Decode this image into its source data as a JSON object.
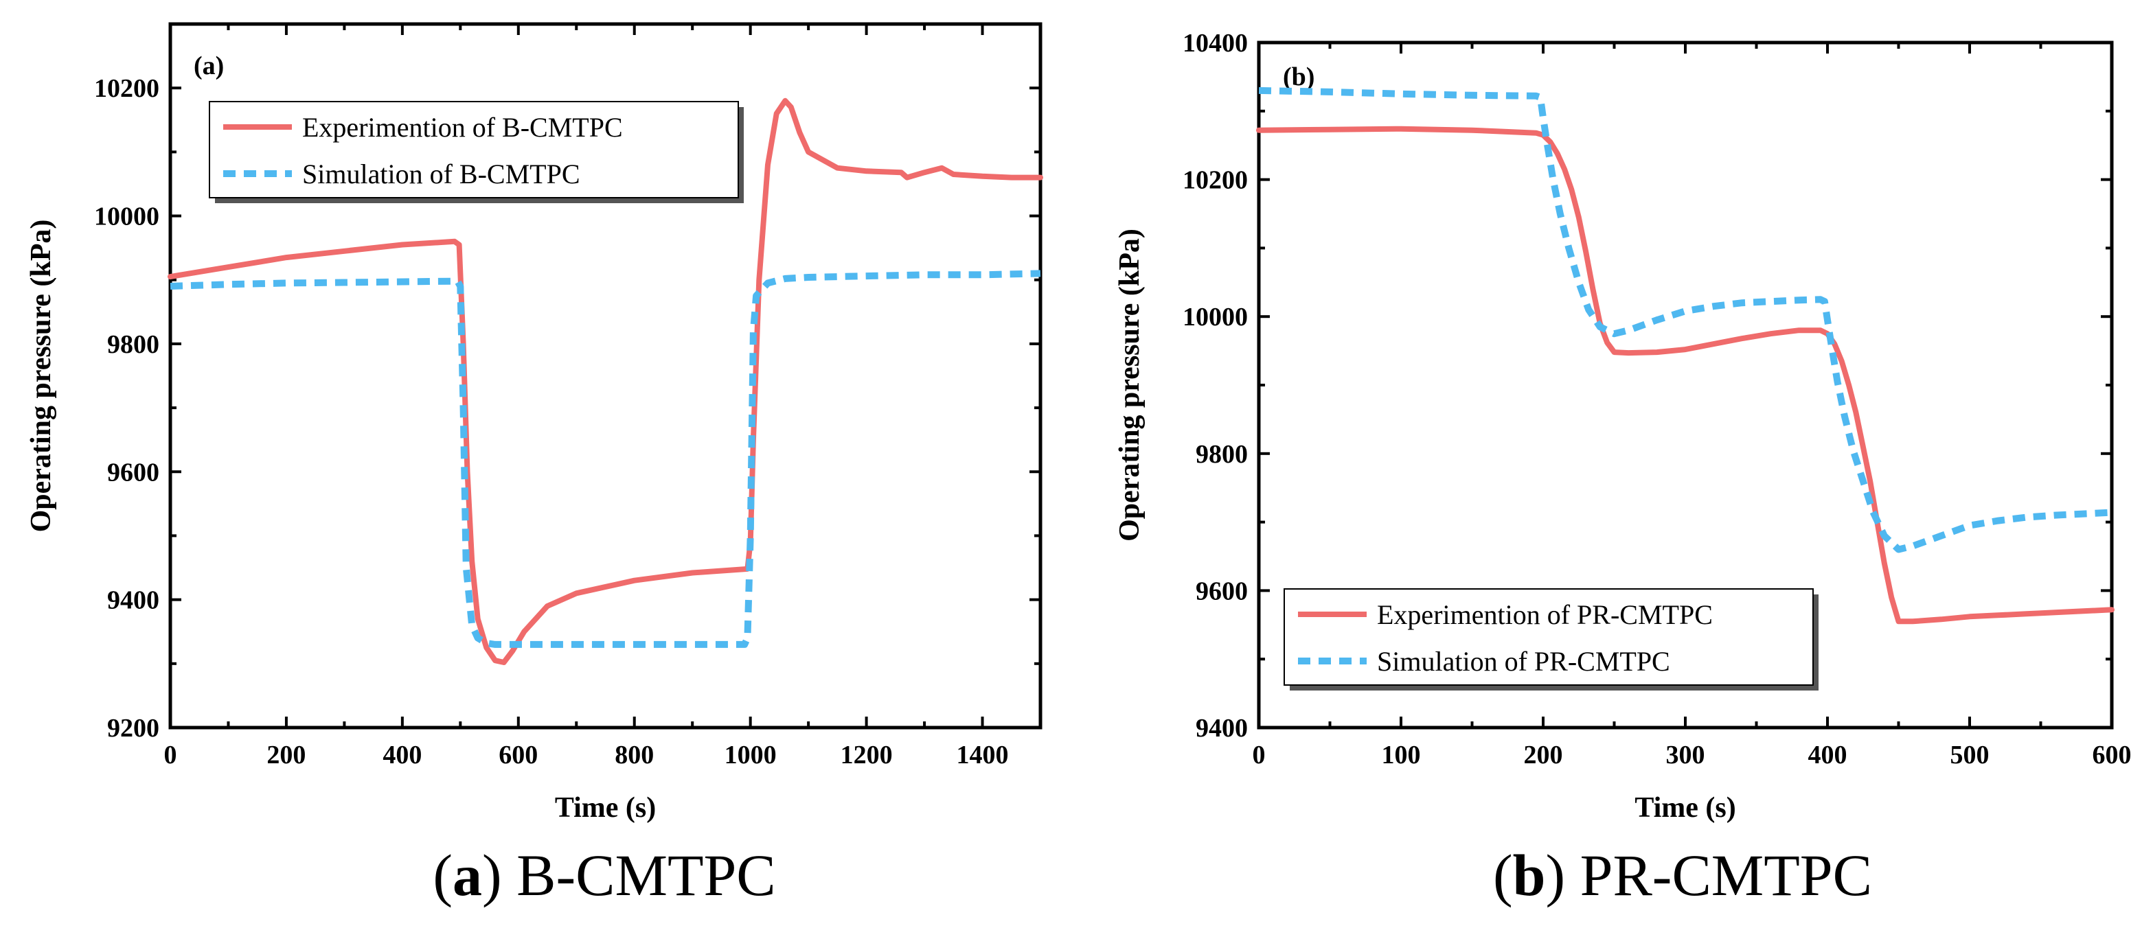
{
  "figures": [
    {
      "id": "a",
      "panel_tag": "(a)",
      "caption": {
        "tag": "a",
        "text": "B-CMTPC"
      },
      "legend": [
        {
          "label": "Experimention of B-CMTPC",
          "style": "solid"
        },
        {
          "label": "Simulation of B-CMTPC",
          "style": "dashed"
        }
      ]
    },
    {
      "id": "b",
      "panel_tag": "(b)",
      "caption": {
        "tag": "b",
        "text": "PR-CMTPC"
      },
      "legend": [
        {
          "label": "Experimention of PR-CMTPC",
          "style": "solid"
        },
        {
          "label": "Simulation of PR-CMTPC",
          "style": "dashed"
        }
      ]
    }
  ],
  "colors": {
    "experiment": "#ef6b6b",
    "simulation": "#4fb8f0",
    "axis": "#000000"
  },
  "chart_data": [
    {
      "type": "line",
      "id": "a",
      "title": "",
      "xlabel": "Time (s)",
      "ylabel": "Operating pressure (kPa)",
      "xlim": [
        0,
        1500
      ],
      "ylim": [
        9200,
        10300
      ],
      "xticks": [
        0,
        200,
        400,
        600,
        800,
        1000,
        1200,
        1400
      ],
      "yticks": [
        9200,
        9400,
        9600,
        9800,
        10000,
        10200
      ],
      "legend_position": "top-left",
      "series": [
        {
          "name": "Experimention of B-CMTPC",
          "x": [
            0,
            100,
            200,
            300,
            400,
            490,
            498,
            505,
            512,
            520,
            530,
            545,
            560,
            575,
            590,
            610,
            650,
            700,
            800,
            900,
            995,
            1000,
            1005,
            1015,
            1030,
            1045,
            1060,
            1070,
            1085,
            1100,
            1150,
            1200,
            1260,
            1270,
            1300,
            1330,
            1350,
            1400,
            1450,
            1500
          ],
          "y": [
            9905,
            9920,
            9935,
            9945,
            9955,
            9960,
            9955,
            9800,
            9600,
            9460,
            9370,
            9325,
            9305,
            9302,
            9320,
            9350,
            9390,
            9410,
            9430,
            9442,
            9448,
            9490,
            9650,
            9900,
            10080,
            10160,
            10180,
            10170,
            10130,
            10100,
            10075,
            10070,
            10068,
            10060,
            10068,
            10075,
            10065,
            10062,
            10060,
            10060
          ]
        },
        {
          "name": "Simulation of B-CMTPC",
          "x": [
            0,
            100,
            200,
            300,
            400,
            495,
            500,
            505,
            510,
            520,
            530,
            545,
            560,
            600,
            700,
            800,
            900,
            990,
            995,
            1000,
            1005,
            1010,
            1030,
            1060,
            1100,
            1200,
            1300,
            1400,
            1500
          ],
          "y": [
            9890,
            9893,
            9895,
            9896,
            9897,
            9898,
            9890,
            9700,
            9450,
            9360,
            9340,
            9332,
            9330,
            9330,
            9330,
            9330,
            9330,
            9330,
            9340,
            9500,
            9820,
            9875,
            9895,
            9902,
            9904,
            9906,
            9908,
            9908,
            9910
          ]
        }
      ]
    },
    {
      "type": "line",
      "id": "b",
      "title": "",
      "xlabel": "Time (s)",
      "ylabel": "Operating pressure (kPa)",
      "xlim": [
        0,
        600
      ],
      "ylim": [
        9400,
        10400
      ],
      "xticks": [
        0,
        100,
        200,
        300,
        400,
        500,
        600
      ],
      "yticks": [
        9400,
        9600,
        9800,
        10000,
        10200,
        10400
      ],
      "legend_position": "bottom-left",
      "series": [
        {
          "name": "Experimention of PR-CMTPC",
          "x": [
            0,
            50,
            100,
            150,
            195,
            200,
            205,
            210,
            215,
            220,
            225,
            230,
            235,
            240,
            245,
            250,
            260,
            280,
            300,
            320,
            340,
            360,
            380,
            395,
            400,
            405,
            410,
            415,
            420,
            425,
            430,
            435,
            440,
            445,
            450,
            460,
            480,
            500,
            520,
            540,
            560,
            580,
            600
          ],
          "y": [
            10272,
            10273,
            10274,
            10272,
            10268,
            10265,
            10255,
            10238,
            10215,
            10185,
            10145,
            10095,
            10040,
            9990,
            9962,
            9948,
            9947,
            9948,
            9952,
            9960,
            9968,
            9975,
            9980,
            9980,
            9975,
            9960,
            9935,
            9900,
            9860,
            9810,
            9760,
            9700,
            9640,
            9590,
            9555,
            9555,
            9558,
            9562,
            9564,
            9566,
            9568,
            9570,
            9572
          ]
        },
        {
          "name": "Simulation of PR-CMTPC",
          "x": [
            0,
            50,
            100,
            150,
            195,
            198,
            200,
            203,
            207,
            212,
            218,
            225,
            232,
            240,
            250,
            260,
            280,
            300,
            320,
            340,
            360,
            380,
            395,
            398,
            400,
            403,
            407,
            412,
            418,
            425,
            432,
            440,
            450,
            460,
            480,
            500,
            520,
            540,
            560,
            580,
            600
          ],
          "y": [
            10330,
            10328,
            10325,
            10323,
            10322,
            10320,
            10290,
            10250,
            10200,
            10150,
            10100,
            10050,
            10010,
            9985,
            9975,
            9980,
            9995,
            10008,
            10015,
            10020,
            10022,
            10024,
            10025,
            10022,
            9995,
            9955,
            9905,
            9855,
            9805,
            9760,
            9715,
            9680,
            9660,
            9665,
            9680,
            9695,
            9702,
            9707,
            9710,
            9712,
            9714
          ]
        }
      ]
    }
  ]
}
